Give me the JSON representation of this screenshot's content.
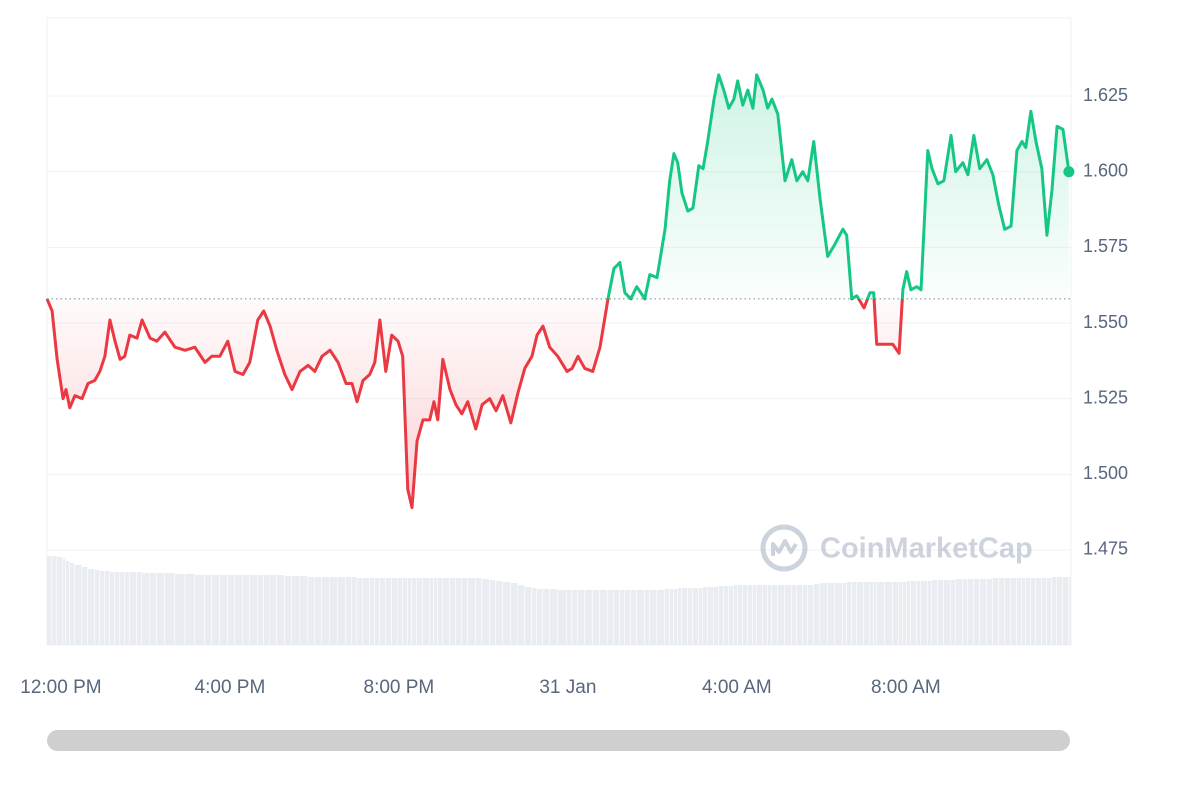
{
  "chart_data": {
    "type": "line",
    "watermark": "CoinMarketCap",
    "x": [
      -0.33,
      -0.21,
      -0.09,
      0.05,
      0.12,
      0.21,
      0.33,
      0.5,
      0.64,
      0.8,
      0.92,
      1.04,
      1.16,
      1.28,
      1.4,
      1.51,
      1.63,
      1.8,
      1.92,
      2.11,
      2.27,
      2.46,
      2.7,
      2.94,
      3.17,
      3.41,
      3.57,
      3.76,
      3.95,
      4.12,
      4.31,
      4.47,
      4.66,
      4.8,
      4.95,
      5.11,
      5.3,
      5.47,
      5.66,
      5.85,
      6.01,
      6.18,
      6.37,
      6.56,
      6.75,
      6.89,
      7.01,
      7.15,
      7.31,
      7.43,
      7.55,
      7.69,
      7.83,
      7.98,
      8.09,
      8.21,
      8.31,
      8.43,
      8.57,
      8.73,
      8.83,
      8.92,
      9.04,
      9.21,
      9.35,
      9.49,
      9.63,
      9.82,
      9.97,
      10.15,
      10.3,
      10.46,
      10.65,
      10.82,
      10.98,
      11.15,
      11.27,
      11.41,
      11.57,
      11.76,
      11.98,
      12.1,
      12.24,
      12.4,
      12.59,
      12.76,
      12.95,
      13.09,
      13.23,
      13.35,
      13.49,
      13.63,
      13.82,
      13.94,
      14.11,
      14.3,
      14.41,
      14.51,
      14.6,
      14.7,
      14.84,
      14.96,
      15.1,
      15.2,
      15.31,
      15.46,
      15.57,
      15.69,
      15.81,
      15.93,
      16.02,
      16.14,
      16.26,
      16.38,
      16.47,
      16.62,
      16.73,
      16.83,
      16.97,
      17.14,
      17.3,
      17.42,
      17.56,
      17.68,
      17.82,
      17.97,
      18.15,
      18.32,
      18.51,
      18.6,
      18.72,
      18.84,
      19.01,
      19.15,
      19.24,
      19.31,
      19.5,
      19.69,
      19.84,
      19.93,
      20.02,
      20.12,
      20.26,
      20.36,
      20.52,
      20.62,
      20.76,
      20.9,
      21.07,
      21.18,
      21.35,
      21.47,
      21.61,
      21.75,
      21.92,
      22.06,
      22.2,
      22.34,
      22.49,
      22.63,
      22.75,
      22.84,
      22.96,
      23.08,
      23.22,
      23.34,
      23.46,
      23.58,
      23.72,
      23.86
    ],
    "values": [
      1.558,
      1.554,
      1.538,
      1.525,
      1.528,
      1.522,
      1.526,
      1.525,
      1.53,
      1.531,
      1.534,
      1.539,
      1.551,
      1.544,
      1.538,
      1.539,
      1.546,
      1.545,
      1.551,
      1.545,
      1.544,
      1.547,
      1.542,
      1.541,
      1.542,
      1.537,
      1.539,
      1.539,
      1.544,
      1.534,
      1.533,
      1.537,
      1.551,
      1.554,
      1.549,
      1.541,
      1.533,
      1.528,
      1.534,
      1.536,
      1.534,
      1.539,
      1.541,
      1.537,
      1.53,
      1.53,
      1.524,
      1.531,
      1.533,
      1.537,
      1.551,
      1.534,
      1.546,
      1.544,
      1.539,
      1.495,
      1.489,
      1.511,
      1.518,
      1.518,
      1.524,
      1.518,
      1.538,
      1.528,
      1.523,
      1.52,
      1.524,
      1.515,
      1.523,
      1.525,
      1.521,
      1.526,
      1.517,
      1.527,
      1.535,
      1.539,
      1.546,
      1.549,
      1.542,
      1.539,
      1.534,
      1.535,
      1.539,
      1.535,
      1.534,
      1.542,
      1.558,
      1.568,
      1.57,
      1.56,
      1.558,
      1.562,
      1.558,
      1.566,
      1.565,
      1.581,
      1.597,
      1.606,
      1.603,
      1.593,
      1.587,
      1.588,
      1.602,
      1.601,
      1.61,
      1.624,
      1.632,
      1.627,
      1.621,
      1.624,
      1.63,
      1.622,
      1.627,
      1.621,
      1.632,
      1.627,
      1.621,
      1.624,
      1.619,
      1.597,
      1.604,
      1.597,
      1.6,
      1.597,
      1.61,
      1.591,
      1.572,
      1.576,
      1.581,
      1.579,
      1.558,
      1.559,
      1.555,
      1.56,
      1.56,
      1.543,
      1.543,
      1.543,
      1.54,
      1.561,
      1.567,
      1.561,
      1.562,
      1.561,
      1.607,
      1.601,
      1.596,
      1.597,
      1.612,
      1.6,
      1.603,
      1.599,
      1.612,
      1.601,
      1.604,
      1.599,
      1.589,
      1.581,
      1.582,
      1.607,
      1.61,
      1.608,
      1.62,
      1.61,
      1.601,
      1.579,
      1.594,
      1.615,
      1.614,
      1.6
    ],
    "baseline": 1.558,
    "up_color": "#16c784",
    "down_color": "#ea3943",
    "volume": {
      "axis": "y2",
      "color": "#e9ecf0",
      "values": [
        89,
        89,
        88,
        86,
        84,
        82,
        80,
        78,
        76,
        75,
        74,
        74,
        73,
        73,
        73,
        73,
        73,
        73,
        72,
        72,
        72,
        72,
        71,
        71,
        70,
        70,
        70,
        70,
        70,
        70,
        70,
        70,
        70,
        70,
        70,
        70,
        69,
        69,
        69,
        68,
        68,
        68,
        68,
        68,
        68,
        68,
        67,
        67,
        67,
        67,
        67,
        67,
        67,
        67,
        67,
        67,
        67,
        67,
        67,
        67,
        67,
        67,
        67,
        67,
        67,
        67,
        67,
        67,
        66,
        65,
        64,
        63,
        62,
        60,
        58,
        57,
        56,
        56,
        56,
        55,
        55,
        55,
        55,
        55,
        55,
        55,
        55,
        55,
        55,
        55,
        55,
        55,
        55,
        55,
        55,
        56,
        56,
        56,
        57,
        57,
        57,
        57,
        57,
        58,
        58,
        58,
        59,
        59,
        59,
        60,
        60,
        60,
        60,
        60,
        60,
        60,
        60,
        60,
        60,
        60,
        60,
        60,
        60,
        60,
        61,
        62,
        62,
        62,
        62,
        63,
        63,
        63,
        63,
        63,
        63,
        63,
        63,
        63,
        63,
        63,
        64,
        64,
        64,
        64,
        64,
        65,
        65,
        65,
        65,
        66,
        66,
        66,
        66,
        66,
        66,
        67,
        67,
        67,
        67,
        67,
        67,
        67,
        67,
        67,
        67,
        67,
        68,
        68,
        68,
        68
      ]
    },
    "xlim": [
      -0.33,
      23.91
    ],
    "xticks": [
      {
        "value": 0,
        "label": "12:00 PM"
      },
      {
        "value": 4,
        "label": "4:00 PM"
      },
      {
        "value": 8,
        "label": "8:00 PM"
      },
      {
        "value": 12,
        "label": "31 Jan"
      },
      {
        "value": 16,
        "label": "4:00 AM"
      },
      {
        "value": 20,
        "label": "8:00 AM"
      }
    ],
    "ylim": [
      1.4436,
      1.6508
    ],
    "yticks": [
      1.475,
      {
        "value": 1.5,
        "label": "1.500"
      },
      1.525,
      {
        "value": 1.55,
        "label": "1.550"
      },
      1.575,
      {
        "value": 1.6,
        "label": "1.600"
      },
      1.625
    ],
    "y2lim": [
      0,
      627
    ],
    "grid": true
  }
}
